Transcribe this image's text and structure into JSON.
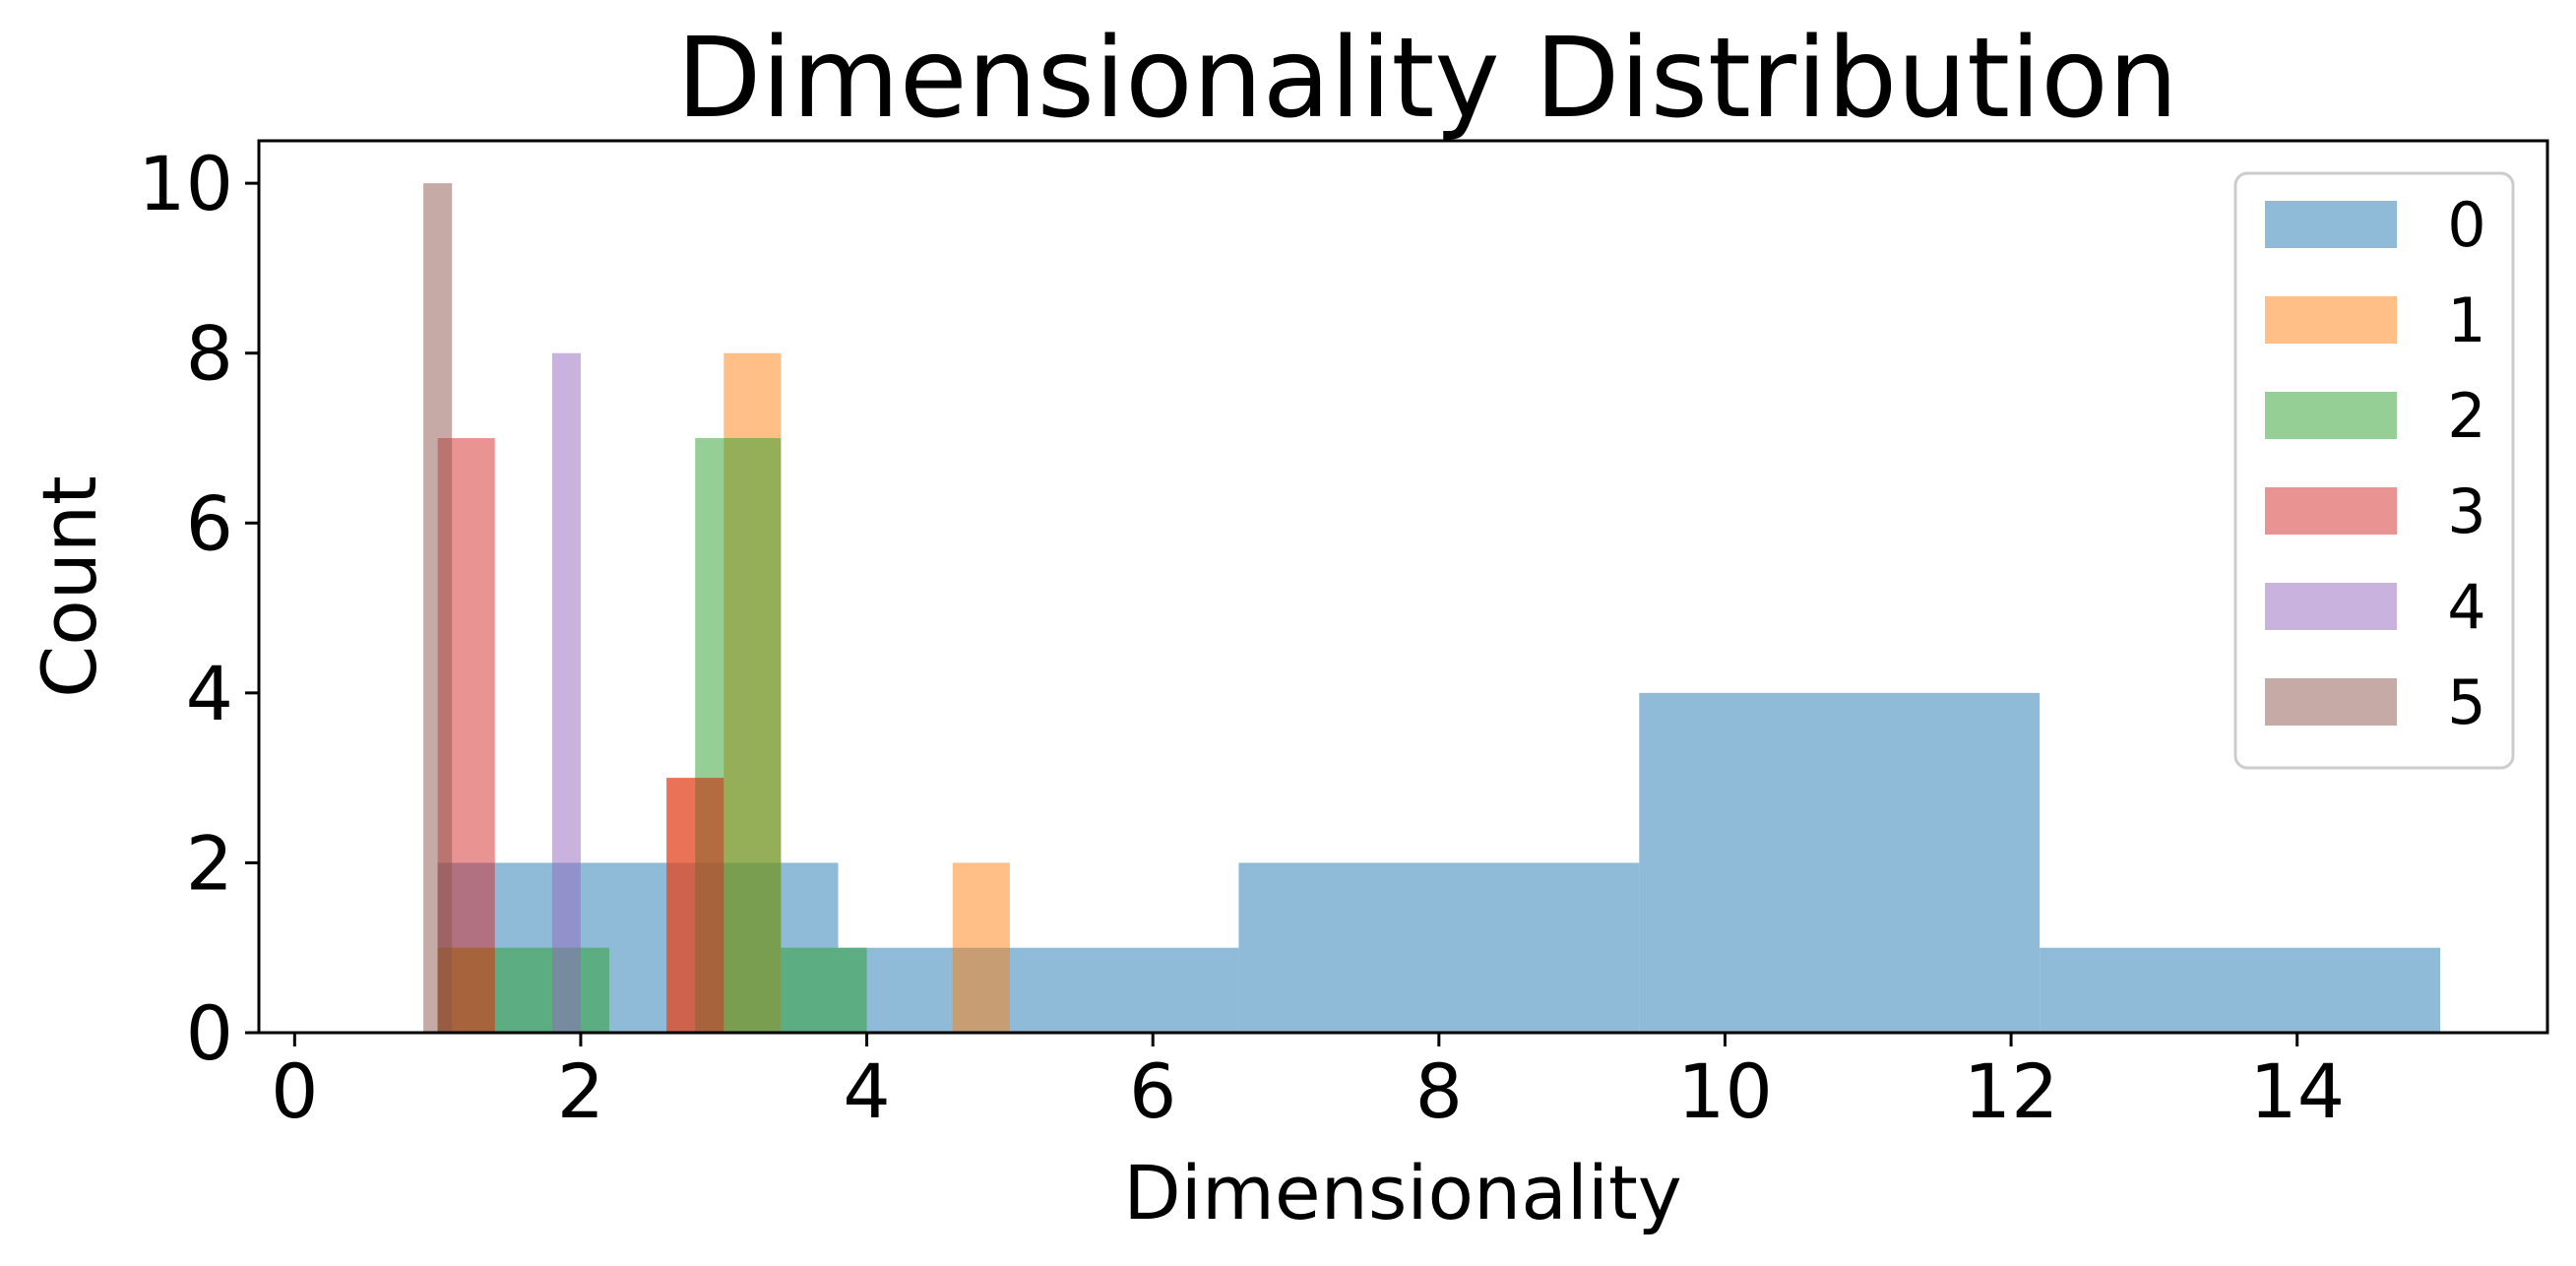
{
  "chart_data": {
    "type": "bar",
    "title": "Dimensionality Distribution",
    "xlabel": "Dimensionality",
    "ylabel": "Count",
    "xlim": [
      -0.25,
      15.75
    ],
    "ylim": [
      0,
      10.5
    ],
    "xticks": [
      0,
      2,
      4,
      6,
      8,
      10,
      12,
      14
    ],
    "yticks": [
      0,
      2,
      4,
      6,
      8,
      10
    ],
    "grid": false,
    "legend_position": "top-right",
    "opacity": 0.5,
    "series": [
      {
        "name": "0",
        "color": "#1f77b4",
        "bins": [
          {
            "x0": 1.0,
            "x1": 3.8,
            "count": 2
          },
          {
            "x0": 3.8,
            "x1": 6.6,
            "count": 1
          },
          {
            "x0": 6.6,
            "x1": 9.4,
            "count": 2
          },
          {
            "x0": 9.4,
            "x1": 12.2,
            "count": 4
          },
          {
            "x0": 12.2,
            "x1": 15.0,
            "count": 1
          }
        ]
      },
      {
        "name": "1",
        "color": "#ff7f0e",
        "bins": [
          {
            "x0": 1.0,
            "x1": 1.4,
            "count": 1
          },
          {
            "x0": 2.6,
            "x1": 3.0,
            "count": 3
          },
          {
            "x0": 3.0,
            "x1": 3.4,
            "count": 8
          },
          {
            "x0": 4.6,
            "x1": 5.0,
            "count": 2
          }
        ]
      },
      {
        "name": "2",
        "color": "#2ca02c",
        "bins": [
          {
            "x0": 1.0,
            "x1": 2.2,
            "count": 1
          },
          {
            "x0": 2.8,
            "x1": 3.4,
            "count": 7
          },
          {
            "x0": 3.4,
            "x1": 4.0,
            "count": 1
          }
        ]
      },
      {
        "name": "3",
        "color": "#d62728",
        "bins": [
          {
            "x0": 1.0,
            "x1": 1.4,
            "count": 7
          },
          {
            "x0": 2.6,
            "x1": 3.0,
            "count": 3
          }
        ]
      },
      {
        "name": "4",
        "color": "#9467bd",
        "bins": [
          {
            "x0": 1.8,
            "x1": 2.0,
            "count": 8
          }
        ]
      },
      {
        "name": "5",
        "color": "#8c564b",
        "bins": [
          {
            "x0": 0.9,
            "x1": 1.1,
            "count": 10
          }
        ]
      }
    ]
  }
}
